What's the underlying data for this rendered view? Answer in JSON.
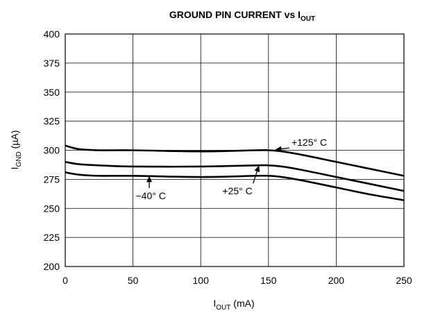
{
  "chart_data": {
    "type": "line",
    "title": {
      "main": "GROUND PIN CURRENT vs I",
      "sub": "OUT"
    },
    "xlabel": {
      "main": "I",
      "sub": "OUT",
      "suffix": " (mA)"
    },
    "ylabel": {
      "main": "I",
      "sub": "GND",
      "suffix": " (µA)"
    },
    "xlim": [
      0,
      250
    ],
    "ylim": [
      200,
      400
    ],
    "xticks": [
      0,
      50,
      100,
      150,
      200,
      250
    ],
    "yticks": [
      200,
      225,
      250,
      275,
      300,
      325,
      350,
      375,
      400
    ],
    "grid": true,
    "series": [
      {
        "name": "+125°C",
        "points": [
          [
            0,
            304
          ],
          [
            10,
            301
          ],
          [
            25,
            300
          ],
          [
            50,
            300
          ],
          [
            100,
            299
          ],
          [
            140,
            300
          ],
          [
            150,
            300
          ],
          [
            160,
            299
          ],
          [
            175,
            296
          ],
          [
            200,
            290
          ],
          [
            225,
            284
          ],
          [
            250,
            278
          ]
        ]
      },
      {
        "name": "+25°C",
        "points": [
          [
            0,
            290
          ],
          [
            10,
            288
          ],
          [
            25,
            287
          ],
          [
            50,
            286
          ],
          [
            100,
            286
          ],
          [
            140,
            287
          ],
          [
            150,
            287
          ],
          [
            160,
            286
          ],
          [
            175,
            283
          ],
          [
            200,
            277
          ],
          [
            225,
            271
          ],
          [
            250,
            265
          ]
        ]
      },
      {
        "name": "−40°C",
        "points": [
          [
            0,
            281
          ],
          [
            10,
            279
          ],
          [
            25,
            278
          ],
          [
            50,
            278
          ],
          [
            100,
            277
          ],
          [
            140,
            278
          ],
          [
            150,
            278
          ],
          [
            160,
            277
          ],
          [
            175,
            274
          ],
          [
            200,
            268
          ],
          [
            225,
            262
          ],
          [
            250,
            257
          ]
        ]
      }
    ],
    "annotations": [
      {
        "series": 0,
        "text": "+125° C",
        "text_at": [
          167,
          304
        ],
        "arrow_to": [
          155,
          300.5
        ]
      },
      {
        "series": 1,
        "text": "+25° C",
        "text_at": [
          116,
          262
        ],
        "arrow_to": [
          143,
          287
        ]
      },
      {
        "series": 2,
        "text": "−40° C",
        "text_at": [
          52,
          258
        ],
        "arrow_to": [
          62,
          278
        ]
      }
    ]
  }
}
